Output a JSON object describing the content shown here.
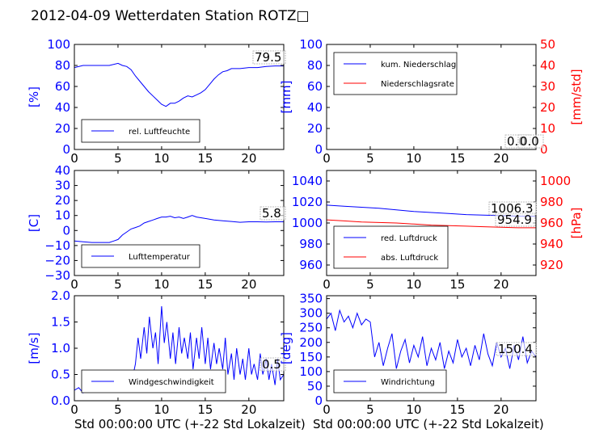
{
  "title": "2012-04-09 Wetterdaten Station ROTZ□",
  "xlabel_left": "Std 00:00:00 UTC (+-22 Std Lokalzeit)",
  "xlabel_right": "Std 00:00:00 UTC (+-22 Std Lokalzeit)",
  "colors": {
    "blue": "#0000ff",
    "red": "#ff0000",
    "axis": "#000000"
  },
  "chart_data": [
    {
      "type": "line",
      "panel": "top-left",
      "ylabel": "[%]",
      "xlim": [
        0,
        24
      ],
      "ylim": [
        0,
        100
      ],
      "xticks": [
        0,
        5,
        10,
        15,
        20
      ],
      "yticks": [
        0,
        20,
        40,
        60,
        80,
        100
      ],
      "legend": "bottom-left",
      "annotation": "79.5",
      "series": [
        {
          "name": "rel. Luftfeuchte",
          "color": "#0000ff",
          "x": [
            0,
            1,
            2,
            3,
            4,
            5,
            5.5,
            6,
            6.5,
            7,
            7.5,
            8,
            8.5,
            9,
            9.5,
            10,
            10.5,
            11,
            11.5,
            12,
            12.5,
            13,
            13.5,
            14,
            14.5,
            15,
            15.5,
            16,
            16.5,
            17,
            17.5,
            18,
            19,
            20,
            21,
            22,
            23,
            24
          ],
          "y": [
            78,
            80,
            80,
            80,
            80,
            82,
            80,
            79,
            76,
            70,
            65,
            60,
            55,
            51,
            47,
            43,
            41,
            44,
            44,
            46,
            49,
            51,
            50,
            52,
            54,
            57,
            62,
            67,
            71,
            74,
            75,
            77,
            77,
            78,
            78,
            79,
            79.5,
            79.5
          ]
        }
      ]
    },
    {
      "type": "line",
      "panel": "top-right",
      "ylabel": "[mm]",
      "ylabel_right": "[mm/std]",
      "xlim": [
        0,
        24
      ],
      "ylim": [
        0,
        100
      ],
      "ylim_right": [
        0,
        50
      ],
      "xticks": [
        0,
        5,
        10,
        15,
        20
      ],
      "yticks": [
        0,
        20,
        40,
        60,
        80,
        100
      ],
      "yticks_right": [
        0,
        10,
        20,
        30,
        40,
        50
      ],
      "legend": "top-left",
      "annotations": [
        "0.0",
        "0.0"
      ],
      "series": [
        {
          "name": "kum. Niederschlag",
          "color": "#0000ff",
          "axis": "left",
          "x": [
            0,
            24
          ],
          "y": [
            0,
            0
          ]
        },
        {
          "name": "Niederschlagsrate",
          "color": "#ff0000",
          "axis": "right",
          "x": [
            0,
            24
          ],
          "y": [
            0,
            0
          ]
        }
      ]
    },
    {
      "type": "line",
      "panel": "middle-left",
      "ylabel": "[C]",
      "xlim": [
        0,
        24
      ],
      "ylim": [
        -30,
        40
      ],
      "xticks": [
        0,
        5,
        10,
        15,
        20
      ],
      "yticks": [
        -30,
        -20,
        -10,
        0,
        10,
        20,
        30,
        40
      ],
      "legend": "bottom-left",
      "annotation": "5.8",
      "series": [
        {
          "name": "Lufttemperatur",
          "color": "#0000ff",
          "x": [
            0,
            1,
            2,
            3,
            4,
            4.5,
            5,
            5.5,
            6,
            6.5,
            7,
            7.5,
            8,
            8.5,
            9,
            9.5,
            10,
            10.5,
            11,
            11.5,
            12,
            12.5,
            13,
            13.5,
            14,
            15,
            16,
            17,
            18,
            19,
            20,
            21,
            22,
            23,
            24
          ],
          "y": [
            -7,
            -7.5,
            -8,
            -8,
            -8,
            -7,
            -6,
            -3,
            -1,
            1,
            2,
            3,
            5,
            6,
            7,
            8,
            9,
            9,
            9.5,
            8.5,
            9,
            8,
            9,
            10,
            9,
            8,
            7,
            6.5,
            6,
            5.5,
            5.8,
            5.8,
            5.7,
            5.8,
            5.8
          ]
        }
      ]
    },
    {
      "type": "line",
      "panel": "middle-right",
      "ylabel_right": "[hPa]",
      "xlim": [
        0,
        24
      ],
      "ylim": [
        950,
        1050
      ],
      "ylim_right": [
        910,
        1010
      ],
      "xticks": [
        0,
        5,
        10,
        15,
        20
      ],
      "yticks": [
        960,
        980,
        1000,
        1020,
        1040
      ],
      "yticks_right": [
        920,
        940,
        960,
        980,
        1000
      ],
      "legend": "bottom-left",
      "annotations": [
        "1006.3",
        "954.9"
      ],
      "series": [
        {
          "name": "red. Luftdruck",
          "color": "#0000ff",
          "axis": "left",
          "x": [
            0,
            2,
            4,
            6,
            8,
            10,
            12,
            14,
            16,
            18,
            20,
            22,
            24
          ],
          "y": [
            1017,
            1016,
            1015,
            1014,
            1012.5,
            1011,
            1010,
            1009,
            1008,
            1007.5,
            1007,
            1006.5,
            1006.3
          ]
        },
        {
          "name": "abs. Luftdruck",
          "color": "#ff0000",
          "axis": "left",
          "x": [
            0,
            2,
            4,
            6,
            8,
            10,
            12,
            14,
            16,
            18,
            20,
            22,
            24
          ],
          "y": [
            1003,
            1002,
            1001,
            1000.5,
            1000,
            999,
            998,
            997.5,
            997,
            996.5,
            996,
            995.5,
            995.5
          ]
        }
      ]
    },
    {
      "type": "line",
      "panel": "bottom-left",
      "ylabel": "[m/s]",
      "xlim": [
        0,
        24
      ],
      "ylim": [
        0,
        2.0
      ],
      "xticks": [
        0,
        5,
        10,
        15,
        20
      ],
      "yticks": [
        0.0,
        0.5,
        1.0,
        1.5,
        2.0
      ],
      "legend": "bottom",
      "annotation": "0.5",
      "series": [
        {
          "name": "Windgeschwindigkeit",
          "color": "#0000ff",
          "x": [
            0,
            0.5,
            1,
            1.5,
            2,
            2.5,
            3,
            3.5,
            4,
            4.5,
            5,
            5.5,
            6,
            6.5,
            7,
            7.3,
            7.6,
            8,
            8.3,
            8.6,
            9,
            9.3,
            9.6,
            10,
            10.3,
            10.6,
            11,
            11.3,
            11.6,
            12,
            12.3,
            12.6,
            13,
            13.3,
            13.6,
            14,
            14.3,
            14.6,
            15,
            15.3,
            15.6,
            16,
            16.3,
            16.6,
            17,
            17.3,
            17.6,
            18,
            18.3,
            18.6,
            19,
            19.3,
            19.6,
            20,
            20.3,
            20.6,
            21,
            21.3,
            21.6,
            22,
            22.3,
            22.6,
            23,
            23.3,
            23.6,
            24
          ],
          "y": [
            0.2,
            0.25,
            0.15,
            0.3,
            0.2,
            0.25,
            0.2,
            0.3,
            0.25,
            0.2,
            0.3,
            0.25,
            0.35,
            0.3,
            0.7,
            1.2,
            0.8,
            1.4,
            0.9,
            1.6,
            1.0,
            1.3,
            0.7,
            1.8,
            1.1,
            1.5,
            0.8,
            1.3,
            0.7,
            1.4,
            0.9,
            1.2,
            0.8,
            1.3,
            0.6,
            1.2,
            0.8,
            1.4,
            0.7,
            1.2,
            0.6,
            1.1,
            0.7,
            1.0,
            0.6,
            1.2,
            0.5,
            0.9,
            0.4,
            1.0,
            0.5,
            0.8,
            0.4,
            1.0,
            0.5,
            0.7,
            0.4,
            0.9,
            0.5,
            0.8,
            0.4,
            0.7,
            0.3,
            0.8,
            0.4,
            0.5
          ]
        }
      ]
    },
    {
      "type": "line",
      "panel": "bottom-right",
      "ylabel": "[deg]",
      "xlim": [
        0,
        24
      ],
      "ylim": [
        0,
        360
      ],
      "xticks": [
        0,
        5,
        10,
        15,
        20
      ],
      "yticks": [
        0,
        50,
        100,
        150,
        200,
        250,
        300,
        350
      ],
      "legend": "bottom-left",
      "annotation": "150.4",
      "series": [
        {
          "name": "Windrichtung",
          "color": "#0000ff",
          "x": [
            0,
            0.5,
            1,
            1.5,
            2,
            2.5,
            3,
            3.5,
            4,
            4.5,
            5,
            5.5,
            6,
            6.5,
            7,
            7.5,
            8,
            8.5,
            9,
            9.5,
            10,
            10.5,
            11,
            11.5,
            12,
            12.5,
            13,
            13.5,
            14,
            14.5,
            15,
            15.5,
            16,
            16.5,
            17,
            17.5,
            18,
            18.5,
            19,
            19.5,
            20,
            20.5,
            21,
            21.5,
            22,
            22.5,
            23,
            23.5,
            24
          ],
          "y": [
            280,
            300,
            240,
            310,
            270,
            290,
            250,
            300,
            260,
            280,
            270,
            150,
            200,
            120,
            180,
            230,
            110,
            170,
            210,
            130,
            190,
            150,
            220,
            120,
            180,
            140,
            200,
            110,
            170,
            130,
            210,
            150,
            180,
            120,
            190,
            140,
            230,
            160,
            120,
            200,
            150,
            180,
            110,
            190,
            140,
            220,
            130,
            170,
            150
          ]
        }
      ]
    }
  ]
}
